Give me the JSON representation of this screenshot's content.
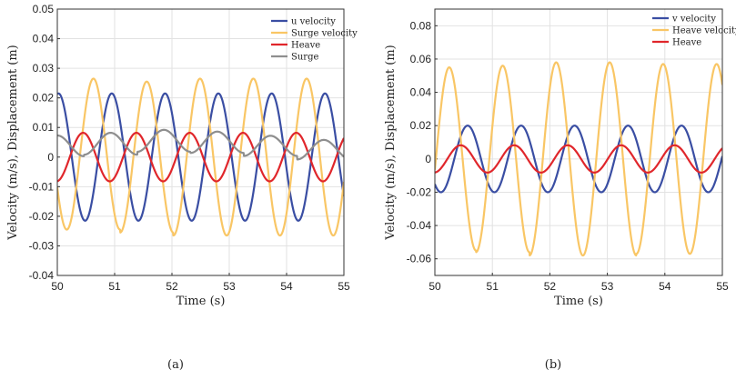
{
  "chart_data": [
    {
      "type": "line",
      "caption": "(a)",
      "xlabel": "Time (s)",
      "ylabel": "Velocity (m/s), Displacement (m)",
      "xlim": [
        50,
        55
      ],
      "ylim": [
        -0.04,
        0.05
      ],
      "xticks": [
        "50",
        "51",
        "52",
        "53",
        "54",
        "55"
      ],
      "yticks": [
        "-0.04",
        "-0.03",
        "-0.02",
        "-0.01",
        "0",
        "0.01",
        "0.02",
        "0.03",
        "0.04",
        "0.05"
      ],
      "grid": true,
      "legend_position": "top-right",
      "series": [
        {
          "name": "u velocity",
          "color": "#3a4ea3",
          "period": 0.93,
          "peak_times": [
            50.02,
            50.95,
            51.88,
            52.81,
            53.74,
            54.67
          ],
          "amplitudes": [
            0.0215,
            0.0215,
            0.0215,
            0.0215,
            0.0215,
            0.0215
          ],
          "offsets": [
            0,
            0,
            0,
            0,
            0,
            0
          ]
        },
        {
          "name": "Surge velocity",
          "color": "#f9c665",
          "period": 0.93,
          "peak_times": [
            50.63,
            51.56,
            52.49,
            53.42,
            54.35
          ],
          "amplitudes": [
            0.0255,
            0.0255,
            0.0265,
            0.0265,
            0.0265
          ],
          "offsets": [
            0.001,
            0,
            0,
            0,
            0
          ]
        },
        {
          "name": "Heave",
          "color": "#e0262b",
          "period": 0.93,
          "peak_times": [
            50.45,
            51.38,
            52.31,
            53.24,
            54.17
          ],
          "amplitudes": [
            0.0082,
            0.0082,
            0.0082,
            0.0082,
            0.0082
          ],
          "offsets": [
            0,
            0,
            0,
            0,
            0
          ]
        },
        {
          "name": "Surge",
          "color": "#8e8e8e",
          "period": 0.93,
          "peak_times": [
            50.0,
            50.93,
            51.86,
            52.79,
            53.72,
            54.65
          ],
          "amplitudes": [
            0.0035,
            0.0037,
            0.0037,
            0.0036,
            0.0034,
            0.0033
          ],
          "offsets": [
            0.0038,
            0.0045,
            0.0055,
            0.005,
            0.0038,
            0.0025
          ]
        }
      ]
    },
    {
      "type": "line",
      "caption": "(b)",
      "xlabel": "Time (s)",
      "ylabel": "Velocity (m/s), Displacement (m)",
      "xlim": [
        50,
        55
      ],
      "ylim": [
        -0.07,
        0.09
      ],
      "xticks": [
        "50",
        "51",
        "52",
        "53",
        "54",
        "55"
      ],
      "yticks": [
        "-0.06",
        "-0.04",
        "-0.02",
        "0",
        "0.02",
        "0.04",
        "0.06",
        "0.08"
      ],
      "grid": true,
      "legend_position": "top-right",
      "series": [
        {
          "name": "v velocity",
          "color": "#3a4ea3",
          "period": 0.93,
          "peak_times": [
            50.57,
            51.5,
            52.43,
            53.36,
            54.29
          ],
          "amplitudes": [
            0.02,
            0.02,
            0.02,
            0.02,
            0.02
          ],
          "offsets": [
            0,
            0,
            0,
            0,
            0
          ]
        },
        {
          "name": "Heave velocity",
          "color": "#f9c665",
          "period": 0.93,
          "peak_times": [
            50.25,
            51.18,
            52.11,
            53.04,
            53.97,
            54.9
          ],
          "amplitudes": [
            0.055,
            0.056,
            0.058,
            0.058,
            0.057,
            0.057
          ],
          "offsets": [
            0,
            0,
            0,
            0,
            0,
            0
          ]
        },
        {
          "name": "Heave",
          "color": "#e0262b",
          "period": 0.93,
          "peak_times": [
            50.45,
            51.38,
            52.31,
            53.24,
            54.17
          ],
          "amplitudes": [
            0.0082,
            0.0082,
            0.0082,
            0.0082,
            0.0082
          ],
          "offsets": [
            0,
            0,
            0,
            0,
            0
          ]
        }
      ]
    }
  ]
}
